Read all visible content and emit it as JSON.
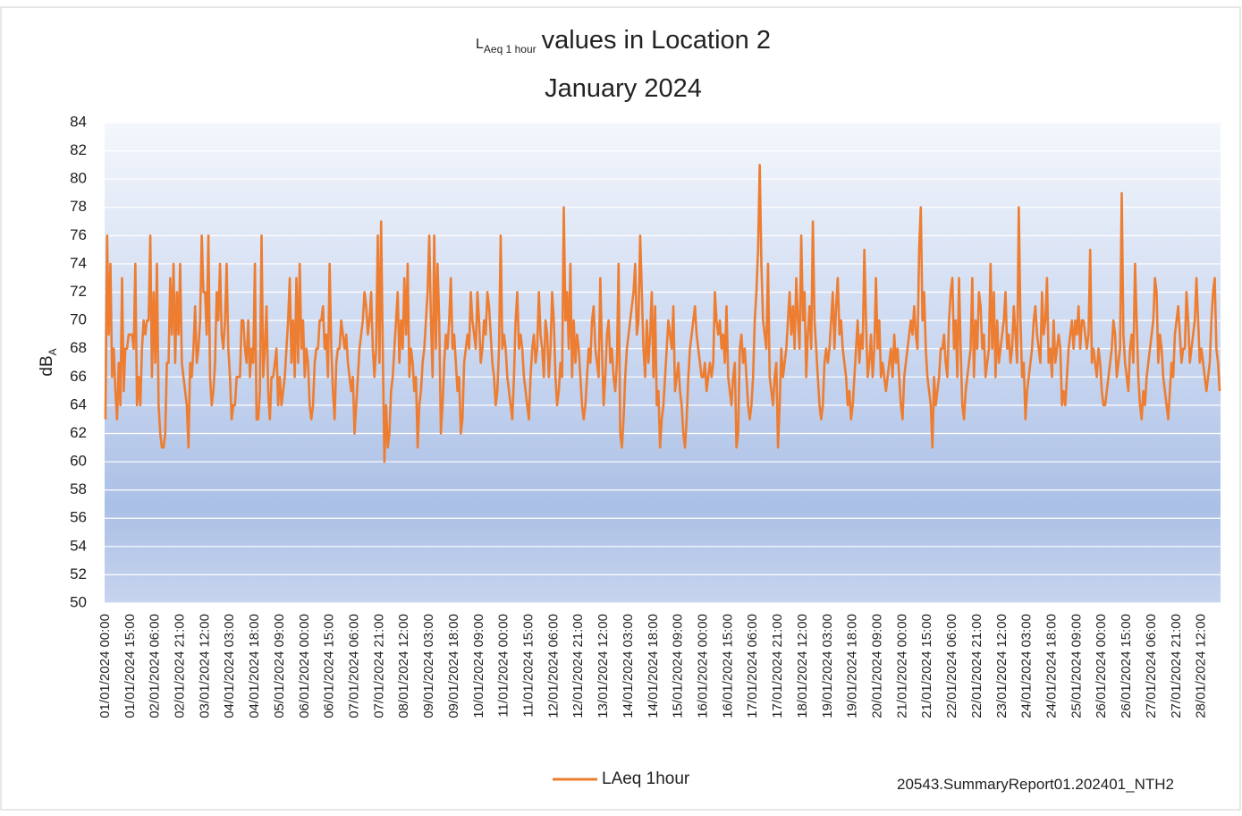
{
  "chart_data": {
    "type": "line",
    "title": {
      "lead": "L",
      "sub": "Aeq 1 hour",
      "rest": "values in Location 2",
      "line2": "January 2024"
    },
    "ylabel": {
      "lead": "dB",
      "sub": "A"
    },
    "footnote": "20543.SummaryReport01.202401_NTH2",
    "ylim": [
      50,
      84
    ],
    "yticks": [
      50,
      52,
      54,
      56,
      58,
      60,
      62,
      64,
      66,
      68,
      70,
      72,
      74,
      76,
      78,
      80,
      82,
      84
    ],
    "grid": true,
    "legend": "bottom",
    "categories": [
      "01/01/2024 00:00",
      null,
      null,
      null,
      null,
      null,
      null,
      null,
      null,
      null,
      null,
      null,
      null,
      null,
      null,
      "01/01/2024 15:00",
      null,
      null,
      null,
      null,
      null,
      null,
      null,
      null,
      null,
      null,
      null,
      null,
      null,
      null,
      "02/01/2024 06:00",
      null,
      null,
      null,
      null,
      null,
      null,
      null,
      null,
      null,
      null,
      null,
      null,
      null,
      null,
      "02/01/2024 21:00",
      null,
      null,
      null,
      null,
      null,
      null,
      null,
      null,
      null,
      null,
      null,
      null,
      null,
      null,
      "03/01/2024 12:00",
      null,
      null,
      null,
      null,
      null,
      null,
      null,
      null,
      null,
      null,
      null,
      null,
      null,
      null,
      "04/01/2024 03:00",
      null,
      null,
      null,
      null,
      null,
      null,
      null,
      null,
      null,
      null,
      null,
      null,
      null,
      null,
      "04/01/2024 18:00",
      null,
      null,
      null,
      null,
      null,
      null,
      null,
      null,
      null,
      null,
      null,
      null,
      null,
      null,
      "05/01/2024 09:00",
      null,
      null,
      null,
      null,
      null,
      null,
      null,
      null,
      null,
      null,
      null,
      null,
      null,
      null,
      "06/01/2024 00:00",
      null,
      null,
      null,
      null,
      null,
      null,
      null,
      null,
      null,
      null,
      null,
      null,
      null,
      null,
      "06/01/2024 15:00",
      null,
      null,
      null,
      null,
      null,
      null,
      null,
      null,
      null,
      null,
      null,
      null,
      null,
      null,
      "07/01/2024 06:00",
      null,
      null,
      null,
      null,
      null,
      null,
      null,
      null,
      null,
      null,
      null,
      null,
      null,
      null,
      "07/01/2024 21:00",
      null,
      null,
      null,
      null,
      null,
      null,
      null,
      null,
      null,
      null,
      null,
      null,
      null,
      null,
      "08/01/2024 12:00",
      null,
      null,
      null,
      null,
      null,
      null,
      null,
      null,
      null,
      null,
      null,
      null,
      null,
      null,
      "09/01/2024 03:00",
      null,
      null,
      null,
      null,
      null,
      null,
      null,
      null,
      null,
      null,
      null,
      null,
      null,
      null,
      "09/01/2024 18:00",
      null,
      null,
      null,
      null,
      null,
      null,
      null,
      null,
      null,
      null,
      null,
      null,
      null,
      null,
      "10/01/2024 09:00",
      null,
      null,
      null,
      null,
      null,
      null,
      null,
      null,
      null,
      null,
      null,
      null,
      null,
      null,
      "11/01/2024 00:00",
      null,
      null,
      null,
      null,
      null,
      null,
      null,
      null,
      null,
      null,
      null,
      null,
      null,
      null,
      "11/01/2024 15:00",
      null,
      null,
      null,
      null,
      null,
      null,
      null,
      null,
      null,
      null,
      null,
      null,
      null,
      null,
      "12/01/2024 06:00",
      null,
      null,
      null,
      null,
      null,
      null,
      null,
      null,
      null,
      null,
      null,
      null,
      null,
      null,
      "12/01/2024 21:00",
      null,
      null,
      null,
      null,
      null,
      null,
      null,
      null,
      null,
      null,
      null,
      null,
      null,
      null,
      "13/01/2024 12:00",
      null,
      null,
      null,
      null,
      null,
      null,
      null,
      null,
      null,
      null,
      null,
      null,
      null,
      null,
      "14/01/2024 03:00",
      null,
      null,
      null,
      null,
      null,
      null,
      null,
      null,
      null,
      null,
      null,
      null,
      null,
      null,
      "14/01/2024 18:00",
      null,
      null,
      null,
      null,
      null,
      null,
      null,
      null,
      null,
      null,
      null,
      null,
      null,
      null,
      "15/01/2024 09:00",
      null,
      null,
      null,
      null,
      null,
      null,
      null,
      null,
      null,
      null,
      null,
      null,
      null,
      null,
      "16/01/2024 00:00",
      null,
      null,
      null,
      null,
      null,
      null,
      null,
      null,
      null,
      null,
      null,
      null,
      null,
      null,
      "16/01/2024 15:00",
      null,
      null,
      null,
      null,
      null,
      null,
      null,
      null,
      null,
      null,
      null,
      null,
      null,
      null,
      "17/01/2024 06:00",
      null,
      null,
      null,
      null,
      null,
      null,
      null,
      null,
      null,
      null,
      null,
      null,
      null,
      null,
      "17/01/2024 21:00",
      null,
      null,
      null,
      null,
      null,
      null,
      null,
      null,
      null,
      null,
      null,
      null,
      null,
      null,
      "18/01/2024 12:00",
      null,
      null,
      null,
      null,
      null,
      null,
      null,
      null,
      null,
      null,
      null,
      null,
      null,
      null,
      "19/01/2024 03:00",
      null,
      null,
      null,
      null,
      null,
      null,
      null,
      null,
      null,
      null,
      null,
      null,
      null,
      null,
      "19/01/2024 18:00",
      null,
      null,
      null,
      null,
      null,
      null,
      null,
      null,
      null,
      null,
      null,
      null,
      null,
      null,
      "20/01/2024 09:00",
      null,
      null,
      null,
      null,
      null,
      null,
      null,
      null,
      null,
      null,
      null,
      null,
      null,
      null,
      "21/01/2024 00:00",
      null,
      null,
      null,
      null,
      null,
      null,
      null,
      null,
      null,
      null,
      null,
      null,
      null,
      null,
      "21/01/2024 15:00",
      null,
      null,
      null,
      null,
      null,
      null,
      null,
      null,
      null,
      null,
      null,
      null,
      null,
      null,
      "22/01/2024 06:00",
      null,
      null,
      null,
      null,
      null,
      null,
      null,
      null,
      null,
      null,
      null,
      null,
      null,
      null,
      "22/01/2024 21:00",
      null,
      null,
      null,
      null,
      null,
      null,
      null,
      null,
      null,
      null,
      null,
      null,
      null,
      null,
      "23/01/2024 12:00",
      null,
      null,
      null,
      null,
      null,
      null,
      null,
      null,
      null,
      null,
      null,
      null,
      null,
      null,
      "24/01/2024 03:00",
      null,
      null,
      null,
      null,
      null,
      null,
      null,
      null,
      null,
      null,
      null,
      null,
      null,
      null,
      "24/01/2024 18:00",
      null,
      null,
      null,
      null,
      null,
      null,
      null,
      null,
      null,
      null,
      null,
      null,
      null,
      null,
      "25/01/2024 09:00",
      null,
      null,
      null,
      null,
      null,
      null,
      null,
      null,
      null,
      null,
      null,
      null,
      null,
      null,
      "26/01/2024 00:00",
      null,
      null,
      null,
      null,
      null,
      null,
      null,
      null,
      null,
      null,
      null,
      null,
      null,
      null,
      "26/01/2024 15:00",
      null,
      null,
      null,
      null,
      null,
      null,
      null,
      null,
      null,
      null,
      null,
      null,
      null,
      null,
      "27/01/2024 06:00",
      null,
      null,
      null,
      null,
      null,
      null,
      null,
      null,
      null,
      null,
      null,
      null,
      null,
      null,
      "27/01/2024 21:00",
      null,
      null,
      null,
      null,
      null,
      null,
      null,
      null,
      null,
      null,
      null,
      null,
      null,
      null,
      "28/01/2024 12:00",
      null,
      null,
      null,
      null,
      null,
      null,
      null,
      null,
      null,
      null,
      null
    ],
    "series": [
      {
        "name": "LAeq 1hour",
        "color": "#ed7d31",
        "values": [
          63,
          76,
          69,
          74,
          66,
          68,
          65,
          63,
          67,
          64,
          73,
          65,
          68,
          68,
          69,
          69,
          69,
          68,
          74,
          64,
          66,
          64,
          68,
          70,
          69,
          70,
          70,
          76,
          66,
          72,
          67,
          74,
          64,
          62,
          61,
          61,
          62,
          67,
          67,
          73,
          69,
          74,
          67,
          72,
          69,
          74,
          67,
          66,
          65,
          64,
          61,
          67,
          66,
          68,
          71,
          67,
          68,
          70,
          76,
          72,
          72,
          69,
          76,
          66,
          64,
          65,
          67,
          72,
          70,
          74,
          69,
          68,
          70,
          74,
          68,
          66,
          63,
          64,
          64,
          66,
          66,
          66,
          70,
          70,
          68,
          67,
          70,
          66,
          68,
          67,
          74,
          63,
          63,
          65,
          76,
          66,
          68,
          71,
          65,
          63,
          66,
          66,
          67,
          68,
          64,
          66,
          64,
          65,
          66,
          68,
          70,
          73,
          67,
          70,
          66,
          73,
          67,
          74,
          68,
          70,
          66,
          68,
          67,
          64,
          63,
          64,
          67,
          68,
          68,
          70,
          70,
          71,
          68,
          69,
          66,
          74,
          68,
          65,
          63,
          67,
          68,
          68,
          70,
          69,
          68,
          69,
          67,
          66,
          65,
          66,
          62,
          64,
          66,
          68,
          69,
          70,
          72,
          71,
          69,
          70,
          72,
          68,
          66,
          68,
          76,
          67,
          77,
          68,
          60,
          64,
          61,
          62,
          65,
          66,
          68,
          70,
          72,
          67,
          70,
          68,
          73,
          69,
          74,
          66,
          68,
          67,
          65,
          66,
          61,
          64,
          65,
          67,
          68,
          70,
          72,
          76,
          70,
          66,
          76,
          68,
          74,
          70,
          62,
          64,
          67,
          69,
          68,
          70,
          73,
          68,
          69,
          67,
          65,
          66,
          62,
          63,
          67,
          68,
          69,
          68,
          72,
          70,
          69,
          68,
          72,
          70,
          67,
          68,
          70,
          69,
          72,
          71,
          69,
          67,
          66,
          64,
          65,
          68,
          76,
          68,
          69,
          68,
          66,
          65,
          64,
          63,
          66,
          70,
          72,
          68,
          69,
          68,
          66,
          65,
          64,
          63,
          66,
          68,
          69,
          67,
          68,
          72,
          69,
          68,
          66,
          70,
          69,
          66,
          68,
          72,
          70,
          66,
          64,
          65,
          67,
          66,
          78,
          70,
          72,
          68,
          74,
          66,
          70,
          67,
          69,
          68,
          66,
          64,
          63,
          64,
          66,
          68,
          67,
          70,
          71,
          68,
          67,
          66,
          73,
          68,
          64,
          66,
          69,
          70,
          67,
          68,
          66,
          65,
          67,
          74,
          62,
          61,
          63,
          66,
          68,
          69,
          70,
          71,
          72,
          74,
          69,
          70,
          76,
          72,
          68,
          66,
          70,
          67,
          69,
          72,
          66,
          71,
          64,
          65,
          61,
          63,
          64,
          66,
          68,
          70,
          69,
          68,
          71,
          65,
          66,
          67,
          65,
          64,
          62,
          61,
          63,
          66,
          68,
          69,
          70,
          71,
          69,
          68,
          67,
          66,
          66,
          67,
          65,
          66,
          67,
          66,
          67,
          72,
          70,
          69,
          70,
          68,
          69,
          67,
          71,
          66,
          65,
          64,
          66,
          67,
          61,
          62,
          68,
          69,
          67,
          68,
          66,
          64,
          63,
          64,
          66,
          70,
          72,
          75,
          81,
          74,
          70,
          69,
          68,
          74,
          66,
          65,
          64,
          66,
          67,
          61,
          64,
          68,
          66,
          67,
          68,
          70,
          72,
          69,
          71,
          68,
          73,
          70,
          68,
          76,
          70,
          72,
          66,
          69,
          71,
          68,
          77,
          70,
          68,
          66,
          64,
          63,
          64,
          67,
          68,
          67,
          68,
          70,
          72,
          68,
          71,
          73,
          69,
          70,
          68,
          67,
          66,
          64,
          65,
          63,
          64,
          66,
          68,
          70,
          67,
          69,
          68,
          75,
          70,
          66,
          67,
          69,
          66,
          68,
          73,
          68,
          70,
          66,
          67,
          66,
          65,
          66,
          67,
          68,
          66,
          69,
          67,
          68,
          66,
          64,
          63,
          66,
          67,
          68,
          69,
          70,
          69,
          71,
          69,
          68,
          75,
          78,
          70,
          72,
          68,
          66,
          65,
          64,
          61,
          66,
          64,
          65,
          66,
          68,
          68,
          69,
          67,
          66,
          70,
          72,
          73,
          68,
          70,
          66,
          73,
          68,
          64,
          63,
          65,
          66,
          67,
          68,
          73,
          66,
          70,
          68,
          72,
          71,
          68,
          69,
          66,
          67,
          68,
          74,
          68,
          72,
          66,
          70,
          67,
          68,
          69,
          70,
          72,
          68,
          69,
          67,
          68,
          71,
          69,
          67,
          78,
          70,
          66,
          67,
          63,
          65,
          66,
          67,
          68,
          70,
          71,
          69,
          68,
          67,
          72,
          69,
          70,
          73,
          67,
          68,
          66,
          70,
          67,
          68,
          69,
          68,
          64,
          65,
          64,
          66,
          68,
          69,
          70,
          68,
          70,
          69,
          71,
          68,
          70,
          70,
          69,
          68,
          69,
          75,
          67,
          68,
          67,
          66,
          68,
          67,
          65,
          64,
          64,
          65,
          66,
          67,
          68,
          70,
          69,
          66,
          67,
          68,
          79,
          69,
          67,
          66,
          65,
          68,
          69,
          67,
          74,
          70,
          66,
          64,
          63,
          65,
          64,
          66,
          67,
          68,
          69,
          70,
          73,
          72,
          67,
          69,
          68,
          66,
          65,
          64,
          63,
          65,
          67,
          66,
          69,
          70,
          71,
          69,
          67,
          68,
          68,
          72,
          70,
          67,
          68,
          69,
          70,
          73,
          70,
          67,
          68,
          67,
          66,
          65,
          66,
          67,
          70,
          72,
          73,
          68,
          67,
          65
        ]
      }
    ]
  }
}
